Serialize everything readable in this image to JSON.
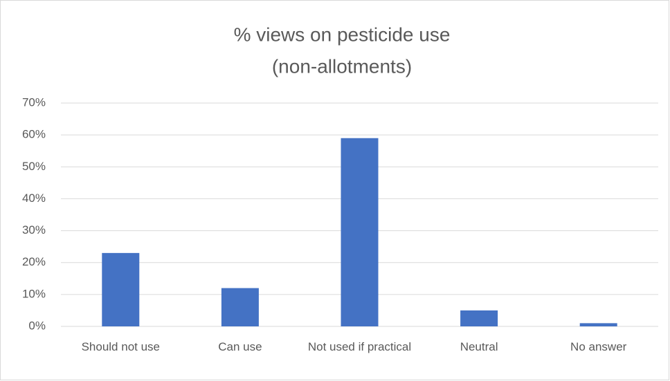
{
  "chart_data": {
    "type": "bar",
    "title": [
      "% views on pesticide use",
      "(non-allotments)"
    ],
    "categories": [
      "Should not use",
      "Can use",
      "Not used if practical",
      "Neutral",
      "No answer"
    ],
    "values": [
      23,
      12,
      59,
      5,
      1
    ],
    "color": "#4472c4",
    "ylim": [
      0,
      70
    ],
    "yticks": [
      {
        "value": 0,
        "label": "0%"
      },
      {
        "value": 10,
        "label": "10%"
      },
      {
        "value": 20,
        "label": "20%"
      },
      {
        "value": 30,
        "label": "30%"
      },
      {
        "value": 40,
        "label": "40%"
      },
      {
        "value": 50,
        "label": "50%"
      },
      {
        "value": 60,
        "label": "60%"
      },
      {
        "value": 70,
        "label": "70%"
      }
    ],
    "grid": true
  }
}
